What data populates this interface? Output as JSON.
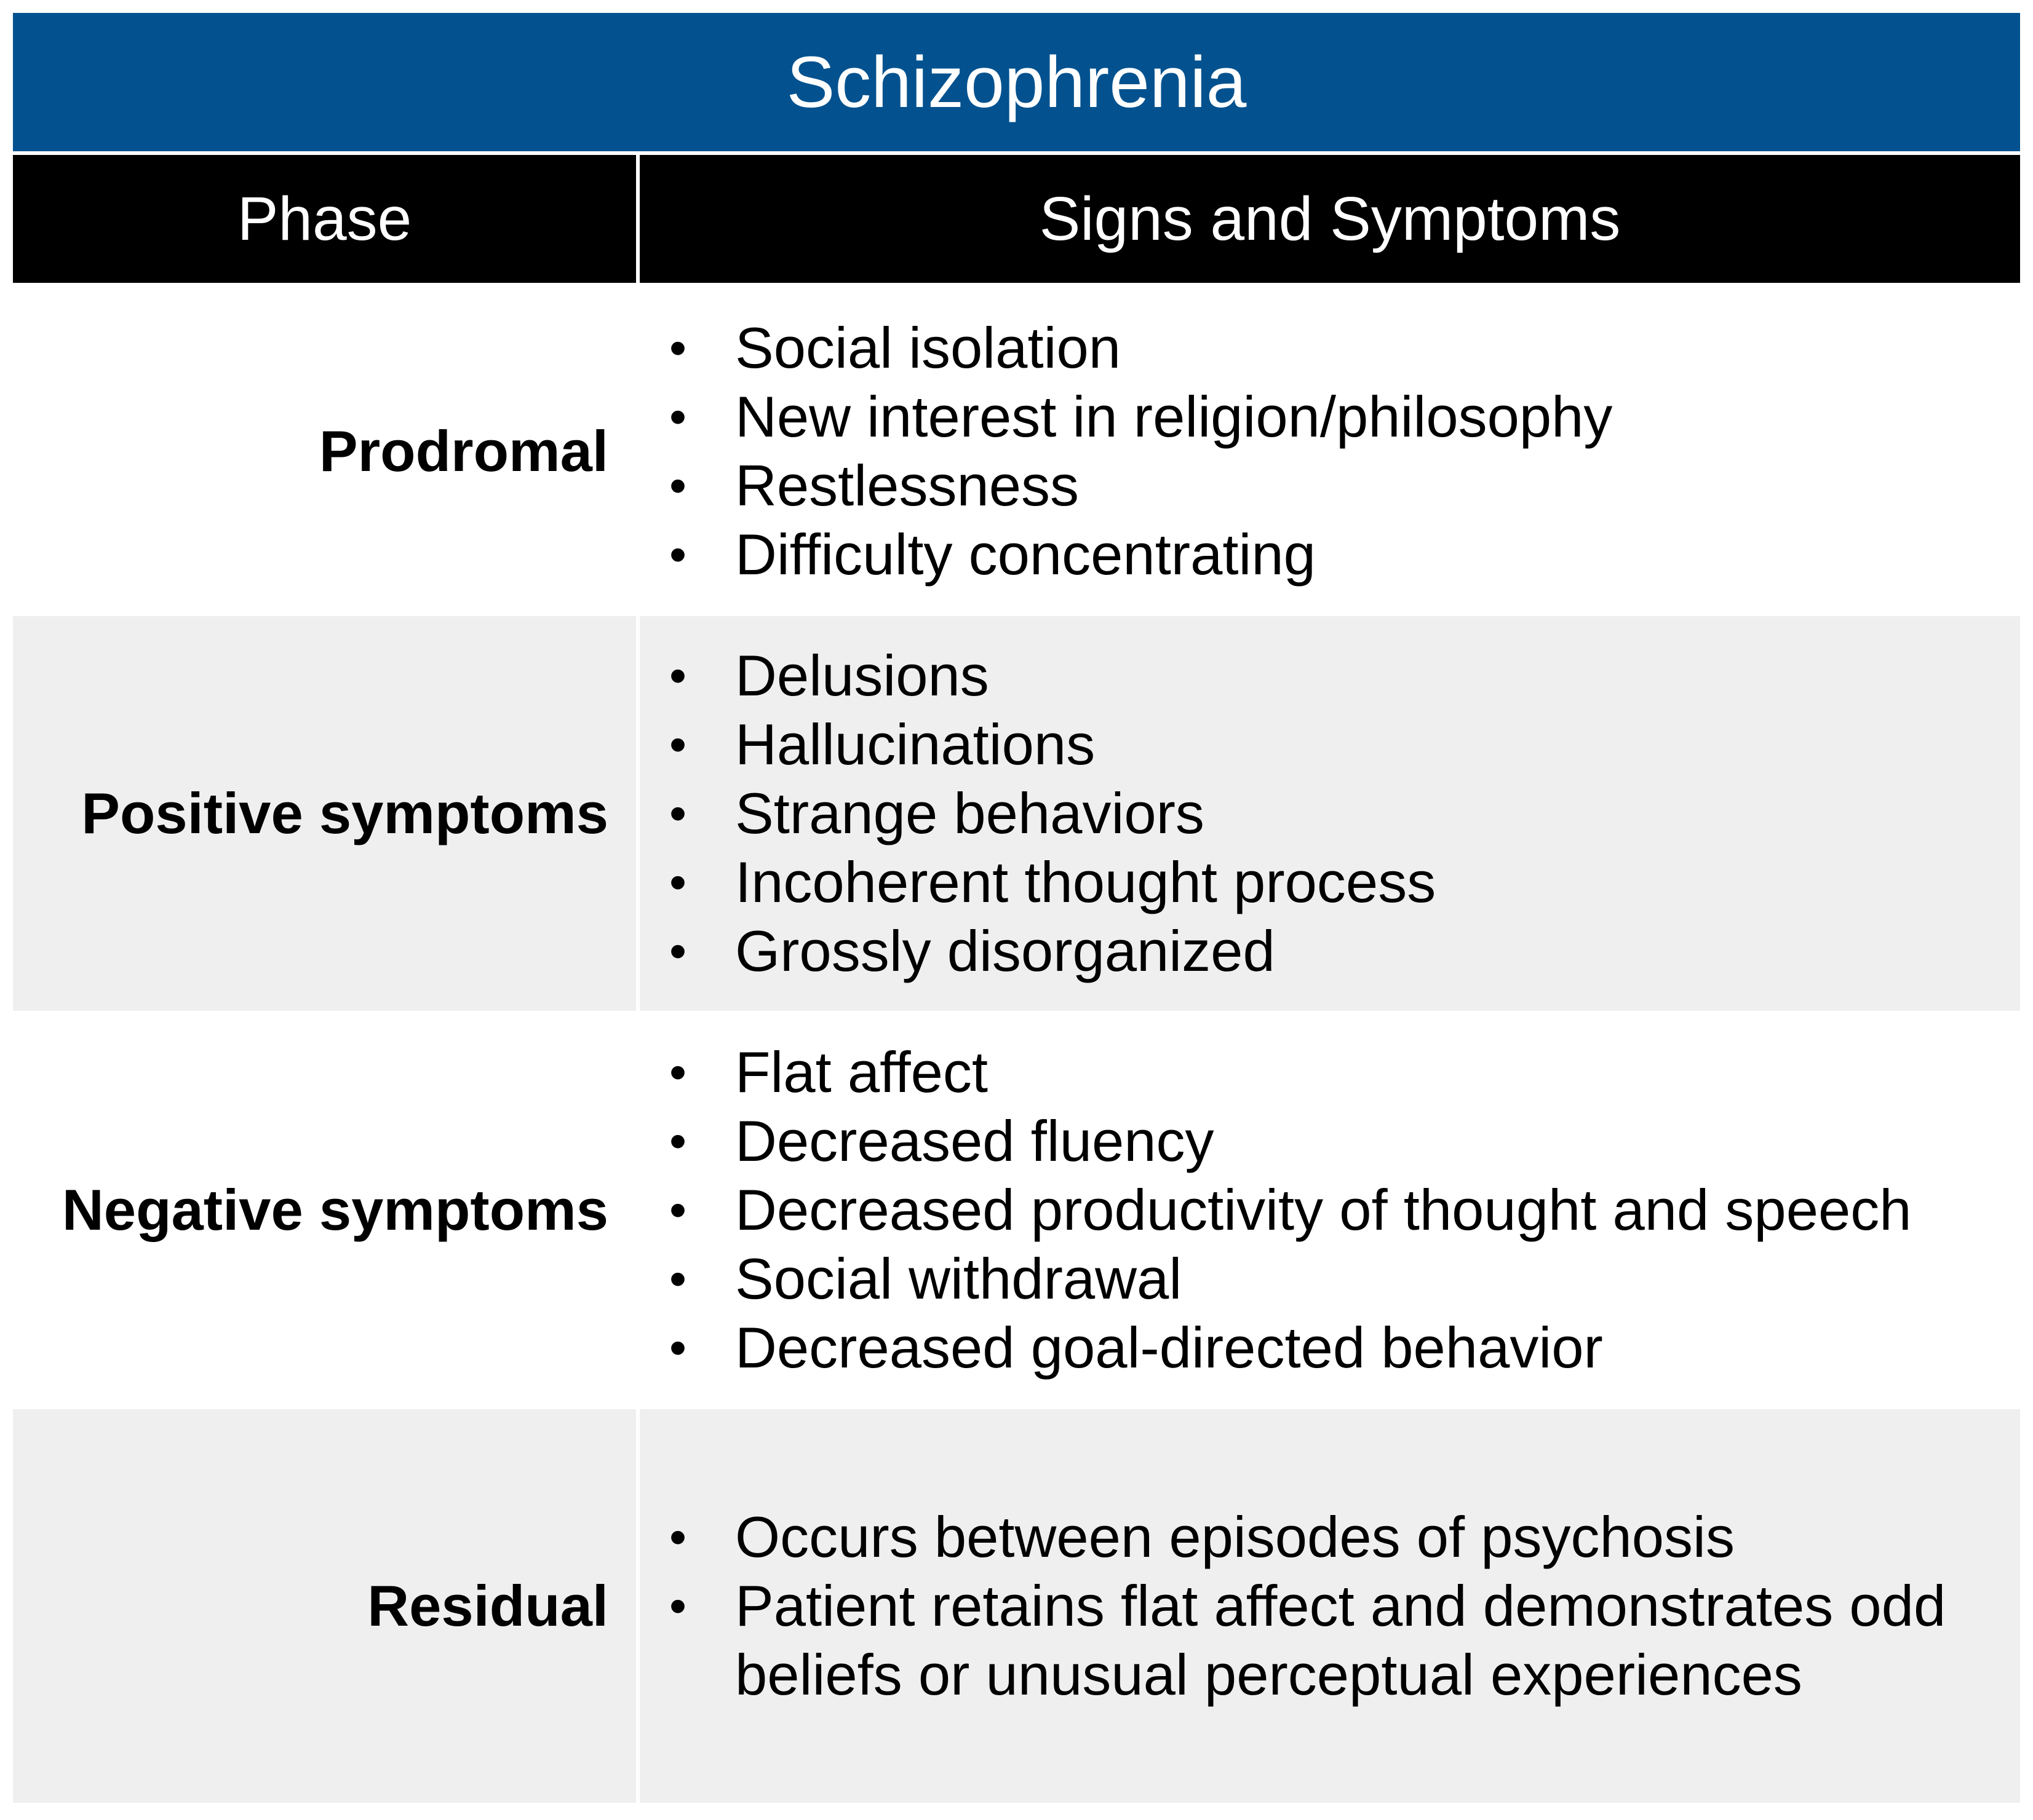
{
  "title": "Schizophrenia",
  "headers": {
    "phase": "Phase",
    "signs": "Signs and Symptoms"
  },
  "rows": [
    {
      "phase": "Prodromal",
      "symptoms": [
        "Social isolation",
        "New interest in religion/philosophy",
        "Restlessness",
        "Difficulty concentrating"
      ]
    },
    {
      "phase": "Positive symptoms",
      "symptoms": [
        "Delusions",
        "Hallucinations",
        "Strange behaviors",
        "Incoherent thought process",
        "Grossly disorganized"
      ]
    },
    {
      "phase": "Negative symptoms",
      "symptoms": [
        "Flat affect",
        "Decreased fluency",
        "Decreased productivity of thought and speech",
        "Social withdrawal",
        "Decreased goal-directed behavior"
      ]
    },
    {
      "phase": "Residual",
      "symptoms": [
        "Occurs between episodes of psychosis",
        "Patient retains flat affect and demonstrates odd beliefs or unusual perceptual experiences"
      ]
    }
  ],
  "colors": {
    "title_bg": "#03528f",
    "header_bg": "#000000",
    "shade_bg": "#efefef"
  }
}
